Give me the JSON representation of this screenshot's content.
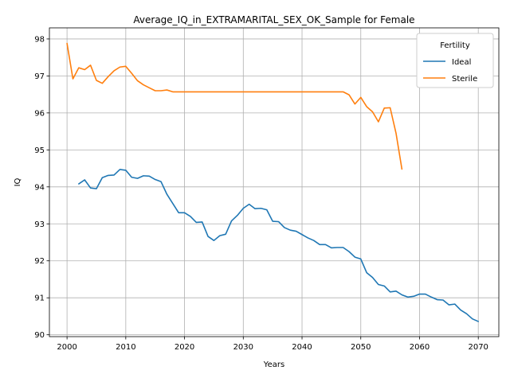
{
  "chart_data": {
    "type": "line",
    "title": "Average_IQ_in_EXTRAMARITAL_SEX_OK_Sample for Female",
    "xlabel": "Years",
    "ylabel": "IQ",
    "xlim": [
      1997,
      2073.5
    ],
    "ylim": [
      89.95,
      98.3
    ],
    "xticks": [
      2000,
      2010,
      2020,
      2030,
      2040,
      2050,
      2060,
      2070
    ],
    "yticks": [
      90,
      91,
      92,
      93,
      94,
      95,
      96,
      97,
      98
    ],
    "grid": true,
    "legend": {
      "title": "Fertility",
      "placement": "top-right"
    },
    "series": [
      {
        "name": "Ideal",
        "color": "#1f77b4",
        "x": [
          2002,
          2003,
          2004,
          2005,
          2006,
          2007,
          2008,
          2009,
          2010,
          2011,
          2012,
          2013,
          2014,
          2015,
          2016,
          2017,
          2018,
          2019,
          2020,
          2021,
          2022,
          2023,
          2024,
          2025,
          2026,
          2027,
          2028,
          2029,
          2030,
          2031,
          2032,
          2033,
          2034,
          2035,
          2036,
          2037,
          2038,
          2039,
          2040,
          2041,
          2042,
          2043,
          2044,
          2045,
          2046,
          2047,
          2048,
          2049,
          2050,
          2051,
          2052,
          2053,
          2054,
          2055,
          2056,
          2057,
          2058,
          2059,
          2060,
          2061,
          2062,
          2063,
          2064,
          2065,
          2066,
          2067,
          2068,
          2069,
          2070
        ],
        "values": [
          94.08,
          94.19,
          93.97,
          93.95,
          94.25,
          94.31,
          94.32,
          94.47,
          94.45,
          94.26,
          94.23,
          94.3,
          94.29,
          94.2,
          94.14,
          93.8,
          93.55,
          93.3,
          93.3,
          93.2,
          93.04,
          93.05,
          92.66,
          92.55,
          92.68,
          92.72,
          93.08,
          93.23,
          93.42,
          93.53,
          93.41,
          93.42,
          93.38,
          93.07,
          93.06,
          92.9,
          92.83,
          92.8,
          92.71,
          92.62,
          92.55,
          92.44,
          92.44,
          92.35,
          92.36,
          92.36,
          92.25,
          92.1,
          92.05,
          91.68,
          91.55,
          91.36,
          91.32,
          91.16,
          91.18,
          91.08,
          91.02,
          91.04,
          91.1,
          91.1,
          91.02,
          90.95,
          90.94,
          90.81,
          90.83,
          90.67,
          90.57,
          90.43,
          90.36
        ]
      },
      {
        "name": "Sterile",
        "color": "#ff7f0e",
        "x": [
          2000,
          2001,
          2002,
          2003,
          2004,
          2005,
          2006,
          2007,
          2008,
          2009,
          2010,
          2011,
          2012,
          2013,
          2014,
          2015,
          2016,
          2017,
          2018,
          2019,
          2020,
          2021,
          2022,
          2023,
          2024,
          2025,
          2026,
          2027,
          2028,
          2029,
          2030,
          2031,
          2032,
          2033,
          2034,
          2035,
          2036,
          2037,
          2038,
          2039,
          2040,
          2041,
          2042,
          2043,
          2044,
          2045,
          2046,
          2047,
          2048,
          2049,
          2050,
          2051,
          2052,
          2053,
          2054,
          2055,
          2056,
          2057
        ],
        "values": [
          97.88,
          96.92,
          97.22,
          97.17,
          97.29,
          96.88,
          96.8,
          96.98,
          97.14,
          97.24,
          97.26,
          97.07,
          96.87,
          96.76,
          96.68,
          96.6,
          96.6,
          96.62,
          96.57,
          96.57,
          96.57,
          96.57,
          96.57,
          96.57,
          96.57,
          96.57,
          96.57,
          96.57,
          96.57,
          96.57,
          96.57,
          96.57,
          96.57,
          96.57,
          96.57,
          96.57,
          96.57,
          96.57,
          96.57,
          96.57,
          96.57,
          96.57,
          96.57,
          96.57,
          96.57,
          96.57,
          96.57,
          96.57,
          96.49,
          96.24,
          96.42,
          96.17,
          96.03,
          95.76,
          96.13,
          96.14,
          95.45,
          94.48
        ]
      }
    ]
  }
}
